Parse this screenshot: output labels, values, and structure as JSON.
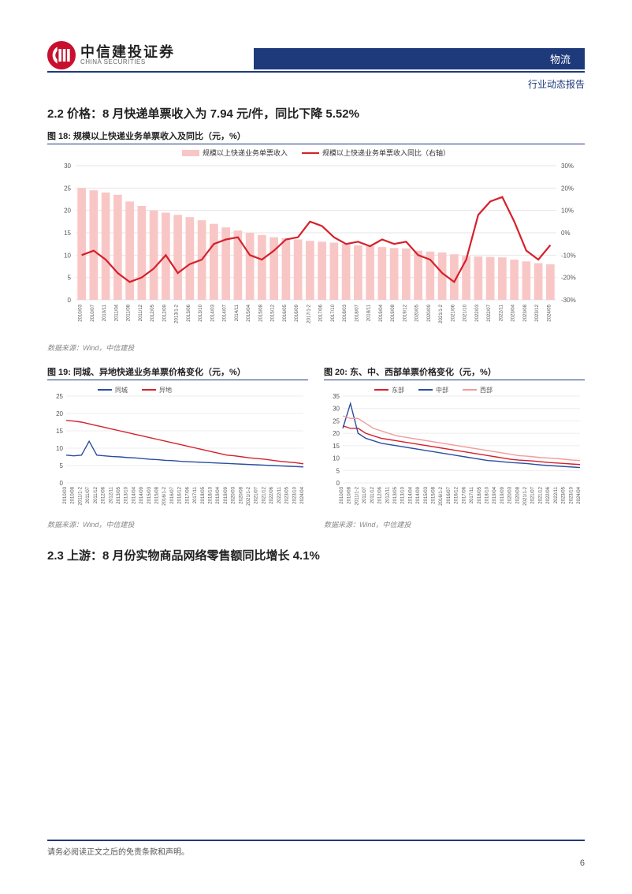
{
  "header": {
    "logo_cn": "中信建投证券",
    "logo_en": "CHINA SECURITIES",
    "tag": "物流",
    "sub_tag": "行业动态报告"
  },
  "section22_title": "2.2 价格：8 月快递单票收入为 7.94 元/件，同比下降 5.52%",
  "section23_title": "2.3 上游：8 月份实物商品网络零售额同比增长 4.1%",
  "fig18": {
    "title": "图 18: 规模以上快递业务单票收入及同比（元，%）",
    "source": "数据来源：Wind，中信建投",
    "legend_bar": "规模以上快递业务单票收入",
    "legend_line": "规模以上快递业务单票收入同比（右轴）",
    "bar_color": "#f9c6c6",
    "line_color": "#d6202c",
    "grid_color": "#e6e6e6",
    "y1_min": 0,
    "y1_max": 30,
    "y1_step": 5,
    "y2_min": -30,
    "y2_max": 30,
    "y2_step": 10,
    "x_categories": [
      "2010/03",
      "2010/07",
      "2010/11",
      "2011/04",
      "2011/08",
      "2011/12",
      "2012/05",
      "2012/09",
      "2013/1-2",
      "2013/06",
      "2013/10",
      "2014/03",
      "2014/07",
      "2014/11",
      "2015/04",
      "2015/08",
      "2015/12",
      "2016/05",
      "2016/09",
      "2017/1-2",
      "2017/06",
      "2017/10",
      "2018/03",
      "2018/07",
      "2018/11",
      "2019/04",
      "2019/08",
      "2019/12",
      "2020/05",
      "2020/09",
      "2021/1-2",
      "2021/06",
      "2021/10",
      "2022/03",
      "2022/07",
      "2022/11",
      "2023/04",
      "2023/08",
      "2023/12",
      "2024/05"
    ],
    "bar_values": [
      25,
      24.5,
      24,
      23.5,
      22,
      21,
      20,
      19.5,
      19,
      18.5,
      17.8,
      17,
      16.2,
      15.5,
      15,
      14.5,
      14,
      13.8,
      13.5,
      13.2,
      13,
      12.8,
      12.5,
      12.2,
      12,
      11.8,
      11.6,
      11.5,
      11,
      10.8,
      10.6,
      10.2,
      9.8,
      9.7,
      9.6,
      9.5,
      9,
      8.6,
      8.2,
      7.94
    ],
    "line_values": [
      -10,
      -8,
      -12,
      -18,
      -22,
      -20,
      -16,
      -10,
      -18,
      -14,
      -12,
      -5,
      -3,
      -2,
      -10,
      -12,
      -8,
      -3,
      -2,
      5,
      3,
      -2,
      -5,
      -4,
      -6,
      -3,
      -5,
      -4,
      -10,
      -12,
      -18,
      -22,
      -12,
      8,
      14,
      16,
      5,
      -8,
      -12,
      -5.52
    ]
  },
  "fig19": {
    "title": "图 19: 同城、异地快递业务单票价格变化（元，%）",
    "source": "数据来源：Wind，中信建投",
    "legend": [
      {
        "label": "同城",
        "color": "#2a4e9e"
      },
      {
        "label": "异地",
        "color": "#d6202c"
      }
    ],
    "y_min": 0,
    "y_max": 25,
    "y_step": 5,
    "x_categories": [
      "2010/03",
      "2010/08",
      "2011/1-2",
      "2011/07",
      "2011/12",
      "2012/06",
      "2012/11",
      "2013/05",
      "2013/10",
      "2014/04",
      "2014/09",
      "2015/03",
      "2015/08",
      "2016/1-2",
      "2016/07",
      "2016/12",
      "2017/06",
      "2017/11",
      "2018/05",
      "2018/10",
      "2019/04",
      "2019/09",
      "2020/03",
      "2020/08",
      "2021/1-2",
      "2021/07",
      "2021/12",
      "2022/06",
      "2022/11",
      "2023/05",
      "2023/10",
      "2024/04"
    ],
    "series": {
      "异地": [
        18,
        17.8,
        17.5,
        17,
        16.5,
        16,
        15.5,
        15,
        14.5,
        14,
        13.5,
        13,
        12.5,
        12,
        11.5,
        11,
        10.5,
        10,
        9.5,
        9,
        8.5,
        8,
        7.8,
        7.5,
        7.2,
        7,
        6.8,
        6.5,
        6.2,
        6,
        5.8,
        5.5
      ],
      "同城": [
        8,
        7.8,
        8,
        12,
        8,
        7.8,
        7.6,
        7.5,
        7.3,
        7.2,
        7,
        6.8,
        6.7,
        6.5,
        6.4,
        6.2,
        6.1,
        6,
        5.9,
        5.8,
        5.7,
        5.6,
        5.5,
        5.4,
        5.3,
        5.2,
        5.1,
        5,
        4.9,
        4.8,
        4.7,
        4.6
      ]
    }
  },
  "fig20": {
    "title": "图 20: 东、中、西部单票价格变化（元，%）",
    "source": "数据来源：Wind，中信建投",
    "legend": [
      {
        "label": "东部",
        "color": "#d6202c"
      },
      {
        "label": "中部",
        "color": "#2a4e9e"
      },
      {
        "label": "西部",
        "color": "#f29b9b"
      }
    ],
    "y_min": 0,
    "y_max": 35,
    "y_step": 5,
    "x_categories": [
      "2010/03",
      "2010/08",
      "2011/1-2",
      "2011/07",
      "2011/12",
      "2012/06",
      "2012/11",
      "2013/05",
      "2013/10",
      "2014/04",
      "2014/09",
      "2015/03",
      "2015/08",
      "2016/1-2",
      "2016/07",
      "2016/12",
      "2017/06",
      "2017/11",
      "2018/05",
      "2018/10",
      "2019/04",
      "2019/09",
      "2020/03",
      "2020/08",
      "2021/1-2",
      "2021/07",
      "2021/12",
      "2022/06",
      "2022/11",
      "2023/05",
      "2023/10",
      "2024/04"
    ],
    "series": {
      "东部": [
        23,
        22,
        22,
        20,
        19,
        18,
        17.5,
        17,
        16.5,
        16,
        15.5,
        15,
        14.5,
        14,
        13.5,
        13,
        12.5,
        12,
        11.5,
        11,
        10.5,
        10,
        9.5,
        9.2,
        9,
        8.8,
        8.5,
        8.2,
        8,
        7.8,
        7.6,
        7.4
      ],
      "中部": [
        22,
        32,
        20,
        18,
        17,
        16,
        15.5,
        15,
        14.5,
        14,
        13.5,
        13,
        12.5,
        12,
        11.5,
        11,
        10.5,
        10,
        9.5,
        9,
        8.8,
        8.5,
        8.2,
        8,
        7.8,
        7.5,
        7.2,
        7,
        6.8,
        6.6,
        6.4,
        6.2
      ],
      "西部": [
        27,
        26,
        26,
        24,
        22,
        21,
        20,
        19,
        18.5,
        18,
        17.5,
        17,
        16.5,
        16,
        15.5,
        15,
        14.5,
        14,
        13.5,
        13,
        12.5,
        12,
        11.5,
        11,
        10.8,
        10.5,
        10.2,
        10,
        9.8,
        9.5,
        9.2,
        9
      ]
    }
  },
  "footer_text": "请务必阅读正文之后的免责条款和声明。",
  "page_number": "6"
}
